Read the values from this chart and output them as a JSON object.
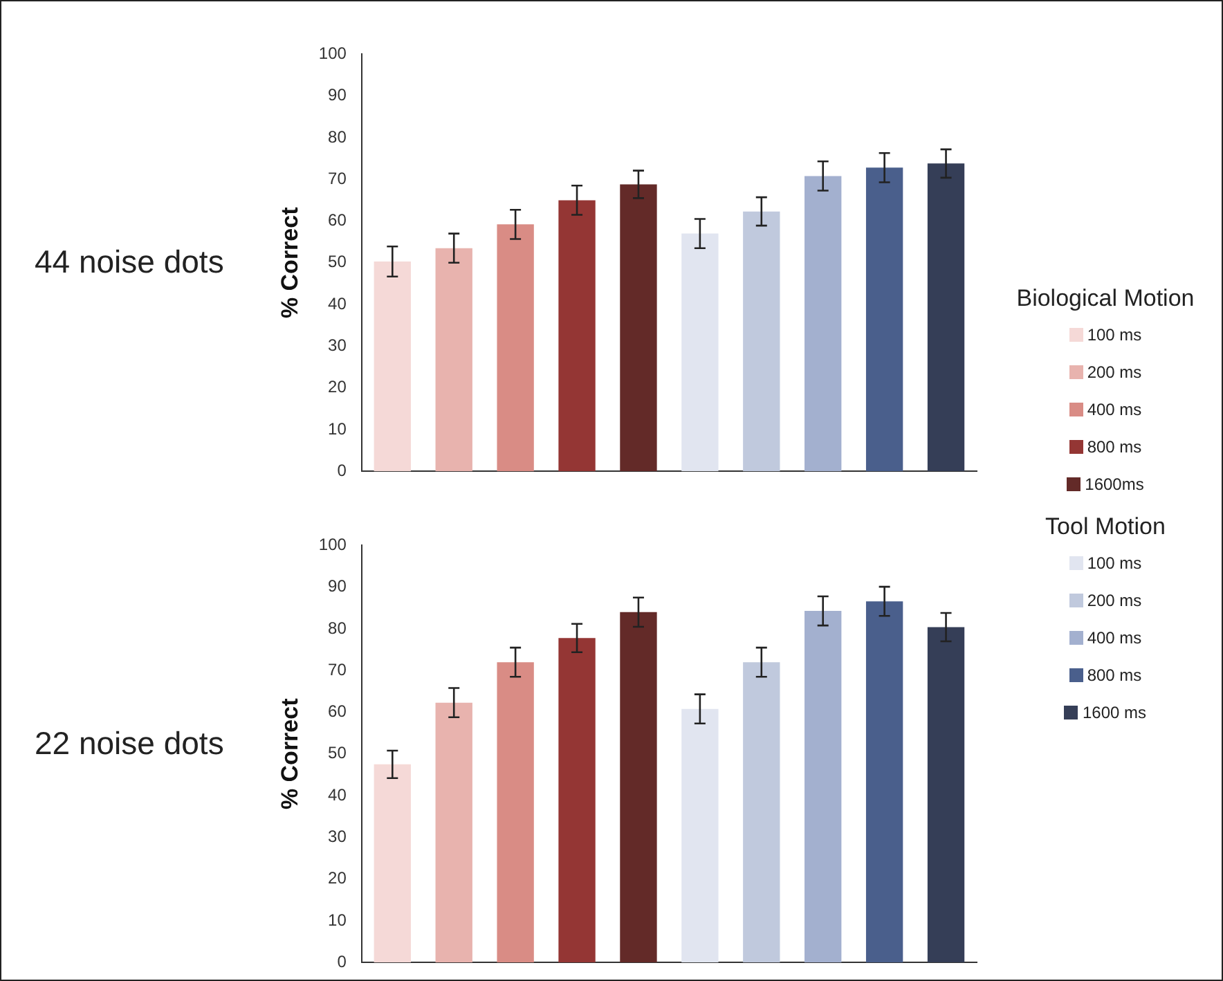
{
  "chart_data": [
    {
      "type": "bar",
      "title": "44 noise dots",
      "ylabel": "% Correct",
      "legend_title": "Biological Motion",
      "legend": "right",
      "grid": false,
      "categories": [
        null,
        null,
        null,
        null,
        null,
        null,
        null,
        null,
        null,
        null
      ],
      "ylim": [
        0,
        100
      ],
      "yticks": [
        0,
        10,
        20,
        30,
        40,
        50,
        60,
        70,
        80,
        90,
        100
      ],
      "series": [
        {
          "name": "100 ms",
          "color": "#f5d9d7",
          "values": [
            50.3,
            null,
            null,
            null,
            null,
            null,
            null,
            null,
            null,
            null
          ],
          "errors": [
            3.6,
            null,
            null,
            null,
            null,
            null,
            null,
            null,
            null,
            null
          ]
        },
        {
          "name": "200 ms",
          "color": "#e8b3ae",
          "values": [
            null,
            53.5,
            null,
            null,
            null,
            null,
            null,
            null,
            null,
            null
          ],
          "errors": [
            null,
            3.5,
            null,
            null,
            null,
            null,
            null,
            null,
            null,
            null
          ]
        },
        {
          "name": "400 ms",
          "color": "#d98c85",
          "values": [
            null,
            null,
            59.2,
            null,
            null,
            null,
            null,
            null,
            null,
            null
          ],
          "errors": [
            null,
            null,
            3.5,
            null,
            null,
            null,
            null,
            null,
            null,
            null
          ]
        },
        {
          "name": "800 ms",
          "color": "#943634",
          "values": [
            null,
            null,
            null,
            65,
            null,
            null,
            null,
            null,
            null,
            null
          ],
          "errors": [
            null,
            null,
            null,
            3.5,
            null,
            null,
            null,
            null,
            null,
            null
          ]
        },
        {
          "name": "1600ms",
          "color": "#632a28",
          "values": [
            null,
            null,
            null,
            null,
            68.8,
            null,
            null,
            null,
            null,
            null
          ],
          "errors": [
            null,
            null,
            null,
            null,
            3.3,
            null,
            null,
            null,
            null,
            null
          ]
        },
        {
          "color": "#e1e5f0",
          "values": [
            null,
            null,
            null,
            null,
            null,
            57,
            null,
            null,
            null,
            null
          ],
          "errors": [
            null,
            null,
            null,
            null,
            null,
            3.5,
            null,
            null,
            null,
            null
          ]
        },
        {
          "color": "#c0c9dd",
          "values": [
            null,
            null,
            null,
            null,
            null,
            null,
            62.3,
            null,
            null,
            null
          ],
          "errors": [
            null,
            null,
            null,
            null,
            null,
            null,
            3.4,
            null,
            null,
            null
          ]
        },
        {
          "color": "#a3b0cf",
          "values": [
            null,
            null,
            null,
            null,
            null,
            null,
            null,
            70.8,
            null,
            null
          ],
          "errors": [
            null,
            null,
            null,
            null,
            null,
            null,
            null,
            3.5,
            null,
            null
          ]
        },
        {
          "color": "#4a5f8c",
          "values": [
            null,
            null,
            null,
            null,
            null,
            null,
            null,
            null,
            72.8,
            null
          ],
          "errors": [
            null,
            null,
            null,
            null,
            null,
            null,
            null,
            null,
            3.5,
            null
          ]
        },
        {
          "color": "#353e57",
          "values": [
            null,
            null,
            null,
            null,
            null,
            null,
            null,
            null,
            null,
            73.8
          ],
          "errors": [
            null,
            null,
            null,
            null,
            null,
            null,
            null,
            null,
            null,
            3.4
          ]
        }
      ]
    },
    {
      "type": "bar",
      "title": "22 noise dots",
      "ylabel": "% Correct",
      "legend_title": "Tool Motion",
      "legend": "right",
      "grid": false,
      "categories": [
        null,
        null,
        null,
        null,
        null,
        null,
        null,
        null,
        null,
        null
      ],
      "ylim": [
        0,
        100
      ],
      "yticks": [
        0,
        10,
        20,
        30,
        40,
        50,
        60,
        70,
        80,
        90,
        100
      ],
      "series": [
        {
          "color": "#f5d9d7",
          "values": [
            47.5,
            null,
            null,
            null,
            null,
            null,
            null,
            null,
            null,
            null
          ],
          "errors": [
            3.3,
            null,
            null,
            null,
            null,
            null,
            null,
            null,
            null,
            null
          ]
        },
        {
          "color": "#e8b3ae",
          "values": [
            null,
            62.3,
            null,
            null,
            null,
            null,
            null,
            null,
            null,
            null
          ],
          "errors": [
            null,
            3.5,
            null,
            null,
            null,
            null,
            null,
            null,
            null,
            null
          ]
        },
        {
          "color": "#d98c85",
          "values": [
            null,
            null,
            72,
            null,
            null,
            null,
            null,
            null,
            null,
            null
          ],
          "errors": [
            null,
            null,
            3.5,
            null,
            null,
            null,
            null,
            null,
            null,
            null
          ]
        },
        {
          "color": "#943634",
          "values": [
            null,
            null,
            null,
            77.8,
            null,
            null,
            null,
            null,
            null,
            null
          ],
          "errors": [
            null,
            null,
            null,
            3.4,
            null,
            null,
            null,
            null,
            null,
            null
          ]
        },
        {
          "color": "#632a28",
          "values": [
            null,
            null,
            null,
            null,
            84,
            null,
            null,
            null,
            null,
            null
          ],
          "errors": [
            null,
            null,
            null,
            null,
            3.5,
            null,
            null,
            null,
            null,
            null
          ]
        },
        {
          "name": "100 ms",
          "color": "#e1e5f0",
          "values": [
            null,
            null,
            null,
            null,
            null,
            60.8,
            null,
            null,
            null,
            null
          ],
          "errors": [
            null,
            null,
            null,
            null,
            null,
            3.5,
            null,
            null,
            null,
            null
          ]
        },
        {
          "name": "200 ms",
          "color": "#c0c9dd",
          "values": [
            null,
            null,
            null,
            null,
            null,
            null,
            72,
            null,
            null,
            null
          ],
          "errors": [
            null,
            null,
            null,
            null,
            null,
            null,
            3.5,
            null,
            null,
            null
          ]
        },
        {
          "name": "400 ms",
          "color": "#a3b0cf",
          "values": [
            null,
            null,
            null,
            null,
            null,
            null,
            null,
            84.3,
            null,
            null
          ],
          "errors": [
            null,
            null,
            null,
            null,
            null,
            null,
            null,
            3.5,
            null,
            null
          ]
        },
        {
          "name": "800 ms",
          "color": "#4a5f8c",
          "values": [
            null,
            null,
            null,
            null,
            null,
            null,
            null,
            null,
            86.6,
            null
          ],
          "errors": [
            null,
            null,
            null,
            null,
            null,
            null,
            null,
            null,
            3.5,
            null
          ]
        },
        {
          "name": "1600 ms",
          "color": "#353e57",
          "values": [
            null,
            null,
            null,
            null,
            null,
            null,
            null,
            null,
            null,
            80.4
          ],
          "errors": [
            null,
            null,
            null,
            null,
            null,
            null,
            null,
            null,
            null,
            3.4
          ]
        }
      ]
    }
  ]
}
